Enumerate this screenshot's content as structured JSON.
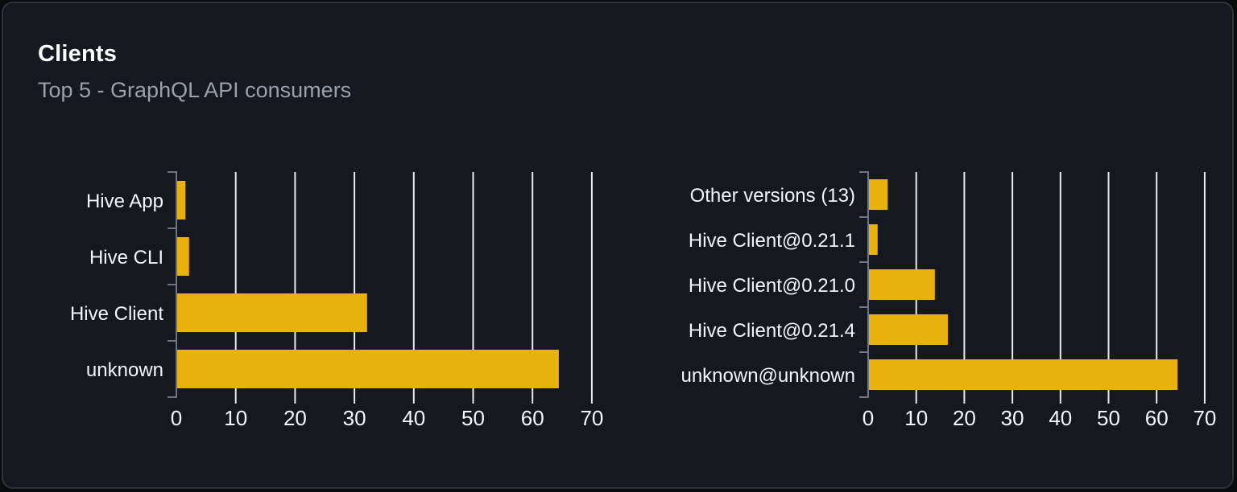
{
  "header": {
    "title": "Clients",
    "subtitle": "Top 5 - GraphQL API consumers"
  },
  "colors": {
    "bar": "#e9b10d",
    "card_background": "#15181e",
    "card_border": "#2e333b",
    "page_background": "#0a0b0d",
    "gridline": "#e8eaed",
    "axis": "#6f7680",
    "text_primary": "#f5f6f8",
    "text_secondary": "#9aa1ab",
    "title_text": "#ffffff"
  },
  "chart_data": [
    {
      "type": "bar",
      "orientation": "horizontal",
      "title": "",
      "xlabel": "",
      "ylabel": "",
      "categories": [
        "Hive App",
        "Hive CLI",
        "Hive Client",
        "unknown"
      ],
      "values": [
        1.4,
        2,
        32,
        64.3
      ],
      "xlim": [
        0,
        70
      ],
      "x_ticks": [
        0,
        10,
        20,
        30,
        40,
        50,
        60,
        70
      ],
      "grid": true,
      "legend": false
    },
    {
      "type": "bar",
      "orientation": "horizontal",
      "title": "",
      "xlabel": "",
      "ylabel": "",
      "categories": [
        "Other versions (13)",
        "Hive Client@0.21.1",
        "Hive Client@0.21.0",
        "Hive Client@0.21.4",
        "unknown@unknown"
      ],
      "values": [
        3.9,
        1.8,
        13.7,
        16.4,
        64.2
      ],
      "xlim": [
        0,
        70
      ],
      "x_ticks": [
        0,
        10,
        20,
        30,
        40,
        50,
        60,
        70
      ],
      "grid": true,
      "legend": false
    }
  ]
}
